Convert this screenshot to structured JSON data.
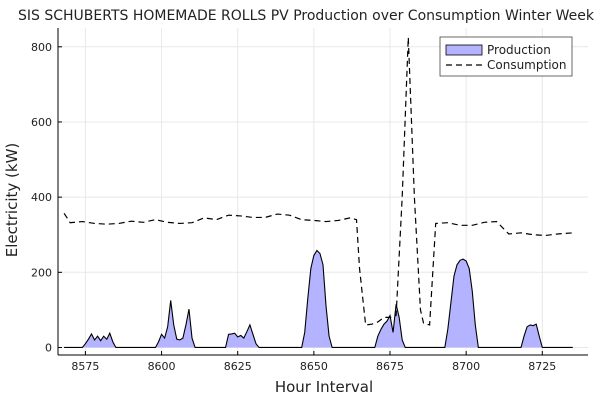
{
  "chart_data": {
    "type": "area",
    "title": "SIS SCHUBERTS HOMEMADE ROLLS PV Production over Consumption Winter Week",
    "xlabel": "Hour Interval",
    "ylabel": "Electricity (kW)",
    "xlim": [
      8566,
      8740
    ],
    "ylim": [
      -20,
      850
    ],
    "xticks": [
      8575,
      8600,
      8625,
      8650,
      8675,
      8700,
      8725
    ],
    "yticks": [
      0,
      200,
      400,
      600,
      800
    ],
    "grid": true,
    "legend_position": "top-right",
    "series": [
      {
        "name": "Production",
        "kind": "filled-area",
        "color": "#b3b3ff",
        "edge_color": "#000000",
        "points": [
          [
            8568,
            0
          ],
          [
            8574,
            0
          ],
          [
            8575,
            10
          ],
          [
            8576,
            22
          ],
          [
            8577,
            36
          ],
          [
            8578,
            20
          ],
          [
            8579,
            30
          ],
          [
            8580,
            18
          ],
          [
            8581,
            30
          ],
          [
            8582,
            22
          ],
          [
            8583,
            38
          ],
          [
            8584,
            15
          ],
          [
            8585,
            0
          ],
          [
            8598,
            0
          ],
          [
            8599,
            15
          ],
          [
            8600,
            35
          ],
          [
            8601,
            25
          ],
          [
            8602,
            55
          ],
          [
            8603,
            125
          ],
          [
            8604,
            60
          ],
          [
            8605,
            22
          ],
          [
            8606,
            20
          ],
          [
            8607,
            25
          ],
          [
            8608,
            60
          ],
          [
            8609,
            102
          ],
          [
            8610,
            25
          ],
          [
            8611,
            0
          ],
          [
            8621,
            0
          ],
          [
            8622,
            35
          ],
          [
            8623,
            36
          ],
          [
            8624,
            38
          ],
          [
            8625,
            28
          ],
          [
            8626,
            32
          ],
          [
            8627,
            25
          ],
          [
            8628,
            42
          ],
          [
            8629,
            60
          ],
          [
            8630,
            35
          ],
          [
            8631,
            10
          ],
          [
            8632,
            0
          ],
          [
            8646,
            0
          ],
          [
            8647,
            40
          ],
          [
            8648,
            130
          ],
          [
            8649,
            210
          ],
          [
            8650,
            245
          ],
          [
            8651,
            258
          ],
          [
            8652,
            250
          ],
          [
            8653,
            220
          ],
          [
            8654,
            110
          ],
          [
            8655,
            30
          ],
          [
            8656,
            0
          ],
          [
            8670,
            0
          ],
          [
            8671,
            30
          ],
          [
            8672,
            48
          ],
          [
            8673,
            62
          ],
          [
            8674,
            70
          ],
          [
            8675,
            85
          ],
          [
            8676,
            40
          ],
          [
            8677,
            115
          ],
          [
            8678,
            80
          ],
          [
            8679,
            20
          ],
          [
            8680,
            0
          ],
          [
            8693,
            0
          ],
          [
            8694,
            50
          ],
          [
            8695,
            120
          ],
          [
            8696,
            190
          ],
          [
            8697,
            220
          ],
          [
            8698,
            232
          ],
          [
            8699,
            235
          ],
          [
            8700,
            230
          ],
          [
            8701,
            210
          ],
          [
            8702,
            150
          ],
          [
            8703,
            60
          ],
          [
            8704,
            0
          ],
          [
            8718,
            0
          ],
          [
            8719,
            30
          ],
          [
            8720,
            55
          ],
          [
            8721,
            60
          ],
          [
            8722,
            58
          ],
          [
            8723,
            62
          ],
          [
            8724,
            30
          ],
          [
            8725,
            0
          ],
          [
            8735,
            0
          ]
        ]
      },
      {
        "name": "Consumption",
        "kind": "dashed-line",
        "color": "#000000",
        "points": [
          [
            8568,
            357
          ],
          [
            8570,
            332
          ],
          [
            8574,
            335
          ],
          [
            8578,
            330
          ],
          [
            8582,
            328
          ],
          [
            8586,
            330
          ],
          [
            8590,
            336
          ],
          [
            8594,
            333
          ],
          [
            8598,
            340
          ],
          [
            8602,
            333
          ],
          [
            8606,
            330
          ],
          [
            8610,
            332
          ],
          [
            8614,
            345
          ],
          [
            8618,
            340
          ],
          [
            8622,
            352
          ],
          [
            8626,
            350
          ],
          [
            8630,
            346
          ],
          [
            8634,
            346
          ],
          [
            8638,
            355
          ],
          [
            8642,
            352
          ],
          [
            8646,
            340
          ],
          [
            8650,
            338
          ],
          [
            8654,
            335
          ],
          [
            8658,
            338
          ],
          [
            8662,
            345
          ],
          [
            8664,
            340
          ],
          [
            8665,
            210
          ],
          [
            8667,
            60
          ],
          [
            8669,
            62
          ],
          [
            8671,
            68
          ],
          [
            8673,
            80
          ],
          [
            8675,
            80
          ],
          [
            8677,
            85
          ],
          [
            8679,
            400
          ],
          [
            8681,
            825
          ],
          [
            8683,
            400
          ],
          [
            8685,
            100
          ],
          [
            8686,
            65
          ],
          [
            8688,
            60
          ],
          [
            8690,
            330
          ],
          [
            8694,
            332
          ],
          [
            8698,
            325
          ],
          [
            8702,
            325
          ],
          [
            8706,
            333
          ],
          [
            8710,
            335
          ],
          [
            8714,
            302
          ],
          [
            8718,
            305
          ],
          [
            8722,
            300
          ],
          [
            8726,
            298
          ],
          [
            8730,
            302
          ],
          [
            8735,
            305
          ]
        ]
      }
    ]
  }
}
